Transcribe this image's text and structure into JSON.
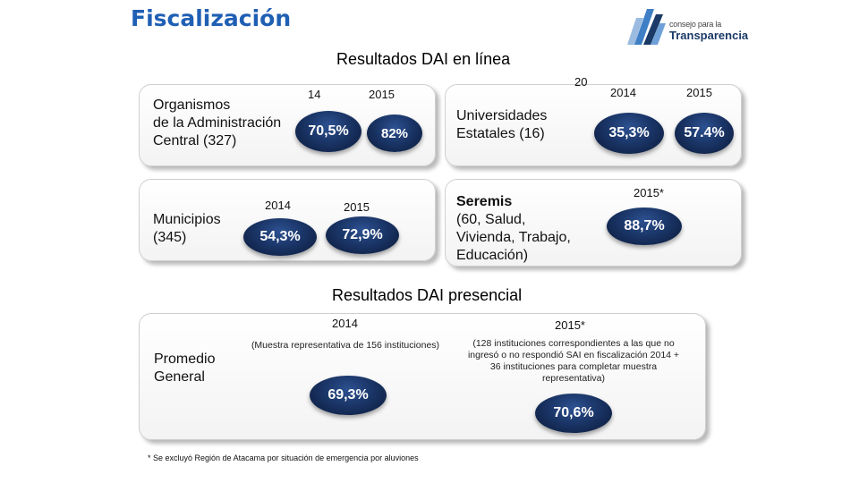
{
  "header": {
    "title": "Fiscalización",
    "logo_small": "consejo para la",
    "logo_big": "Transparencia"
  },
  "online": {
    "title": "Resultados DAI en línea",
    "overflow_digits": "20",
    "organismos": {
      "label_l1": "Organismos",
      "label_l2": "de la Administración",
      "label_l3": "Central (327)",
      "year_a": "14",
      "year_b": "2015",
      "pct_a": "70,5%",
      "pct_b": "82%"
    },
    "universidades": {
      "label_l1": "Universidades",
      "label_l2": "Estatales (16)",
      "year_a": "2014",
      "year_b": "2015",
      "pct_a": "35,3%",
      "pct_b": "57.4%"
    },
    "municipios": {
      "label_l1": "Municipios",
      "label_l2": "(345)",
      "year_a": "2014",
      "year_b": "2015",
      "pct_a": "54,3%",
      "pct_b": "72,9%"
    },
    "seremis": {
      "label_l1": "Seremis",
      "label_l2": "(60, Salud,",
      "label_l3": "Vivienda, Trabajo,",
      "label_l4": "Educación)",
      "year_a": "2015*",
      "pct_a": "88,7%"
    }
  },
  "presencial": {
    "title": "Resultados DAI presencial",
    "label_l1": "Promedio",
    "label_l2": "General",
    "year_a": "2014",
    "year_b": "2015*",
    "note_a": "(Muestra representativa de 156 instituciones)",
    "note_b_l1": "(128 instituciones correspondientes a las que no",
    "note_b_l2": "ingresó o no respondió SAI en fiscalización 2014 +",
    "note_b_l3": "36 instituciones para completar muestra",
    "note_b_l4": "representativa)",
    "pct_a": "69,3%",
    "pct_b": "70,6%"
  },
  "footnote": "* Se excluyó Región de Atacama por situación de emergencia por aluviones"
}
